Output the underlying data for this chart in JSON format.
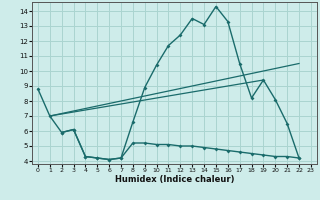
{
  "xlabel": "Humidex (Indice chaleur)",
  "background_color": "#ceecea",
  "grid_color": "#aad4d0",
  "line_color": "#1a6b6b",
  "xlim": [
    -0.5,
    23.5
  ],
  "ylim": [
    3.8,
    14.6
  ],
  "xticks": [
    0,
    1,
    2,
    3,
    4,
    5,
    6,
    7,
    8,
    9,
    10,
    11,
    12,
    13,
    14,
    15,
    16,
    17,
    18,
    19,
    20,
    21,
    22,
    23
  ],
  "yticks": [
    4,
    5,
    6,
    7,
    8,
    9,
    10,
    11,
    12,
    13,
    14
  ],
  "line1_x": [
    0,
    1,
    2,
    3,
    4,
    5,
    6,
    7,
    8,
    9,
    10,
    11,
    12,
    13,
    14,
    15,
    16,
    17,
    18,
    19,
    20,
    21,
    22
  ],
  "line1_y": [
    8.8,
    7.0,
    5.9,
    6.1,
    4.3,
    4.2,
    4.1,
    4.2,
    6.6,
    8.9,
    10.4,
    11.7,
    12.4,
    13.5,
    13.1,
    14.3,
    13.3,
    10.5,
    8.2,
    9.4,
    8.1,
    6.5,
    4.2
  ],
  "line3_x": [
    2,
    3,
    4,
    5,
    6,
    7,
    8,
    9,
    10,
    11,
    12,
    13,
    14,
    15,
    16,
    17,
    18,
    19,
    20,
    21,
    22
  ],
  "line3_y": [
    5.9,
    6.1,
    4.3,
    4.2,
    4.1,
    4.2,
    5.2,
    5.2,
    5.1,
    5.1,
    5.0,
    5.0,
    4.9,
    4.8,
    4.7,
    4.6,
    4.5,
    4.4,
    4.3,
    4.3,
    4.2
  ],
  "line4_x": [
    1,
    22
  ],
  "line4_y": [
    7.0,
    10.5
  ],
  "line5_x": [
    1,
    19
  ],
  "line5_y": [
    7.0,
    9.4
  ]
}
